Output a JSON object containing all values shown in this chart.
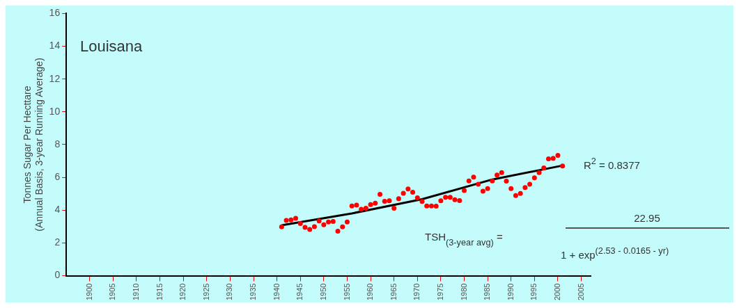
{
  "chart_data": {
    "type": "scatter",
    "ylabel": "Tonnes Sugar Per Hecttare\n(Annual Basis, 3-year Running Average)",
    "xlim": [
      1895,
      2007
    ],
    "xticks": [
      1900,
      1905,
      1910,
      1915,
      1920,
      1925,
      1930,
      1935,
      1940,
      1945,
      1950,
      1955,
      1960,
      1965,
      1970,
      1975,
      1980,
      1985,
      1990,
      1995,
      2000,
      2005
    ],
    "ylim": [
      0,
      16
    ],
    "yticks": [
      0,
      2,
      4,
      6,
      8,
      10,
      12,
      14,
      16
    ],
    "grid": false,
    "legend": false,
    "series": [
      {
        "type": "scatter",
        "color": "#ff0000",
        "marker": "circle",
        "x": [
          1941,
          1942,
          1943,
          1944,
          1945,
          1946,
          1947,
          1948,
          1949,
          1950,
          1951,
          1952,
          1953,
          1954,
          1955,
          1956,
          1957,
          1958,
          1959,
          1960,
          1961,
          1962,
          1963,
          1964,
          1965,
          1966,
          1967,
          1968,
          1969,
          1970,
          1971,
          1972,
          1973,
          1974,
          1975,
          1976,
          1977,
          1978,
          1979,
          1980,
          1981,
          1982,
          1983,
          1984,
          1985,
          1986,
          1987,
          1988,
          1989,
          1990,
          1991,
          1992,
          1993,
          1994,
          1995,
          1996,
          1997,
          1998,
          1999,
          2000,
          2001
        ],
        "values": [
          2.98,
          3.37,
          3.41,
          3.5,
          3.18,
          2.95,
          2.82,
          2.99,
          3.34,
          3.11,
          3.28,
          3.31,
          2.72,
          2.98,
          3.28,
          4.25,
          4.31,
          4.05,
          4.12,
          4.34,
          4.42,
          4.96,
          4.54,
          4.57,
          4.12,
          4.7,
          5.03,
          5.29,
          5.09,
          4.75,
          4.53,
          4.25,
          4.25,
          4.24,
          4.57,
          4.78,
          4.78,
          4.64,
          4.58,
          5.2,
          5.78,
          6.01,
          5.58,
          5.16,
          5.32,
          5.78,
          6.14,
          6.29,
          5.77,
          5.32,
          4.89,
          5.02,
          5.38,
          5.58,
          5.97,
          6.29,
          6.58,
          7.13,
          7.16,
          7.34,
          6.69
        ]
      },
      {
        "type": "line",
        "color": "#000000",
        "marker": "none",
        "line_style": "solid",
        "x": [
          1941,
          1956,
          1971,
          1986,
          2001
        ],
        "values": [
          3.08,
          3.8,
          4.67,
          5.87,
          6.72
        ]
      }
    ],
    "annotations": [
      "Louisana",
      "R$^{2}$ = 0.8377",
      "TSH$_{(3-year avg)}$ =",
      "22.95",
      "1 + exp$^{(2.53 - 0.0165 - yr)}$"
    ]
  }
}
